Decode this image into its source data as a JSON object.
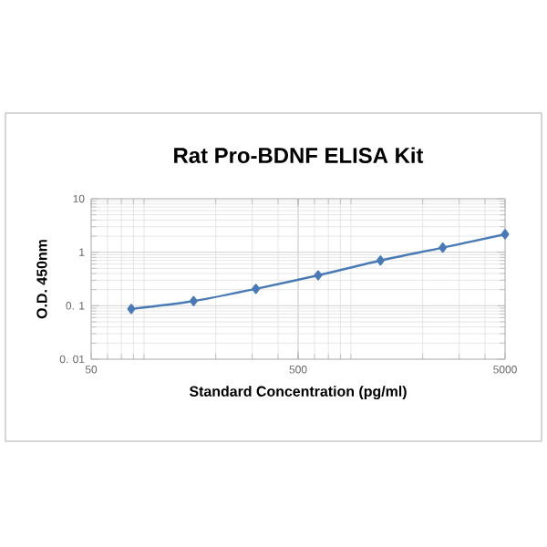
{
  "chart_data": {
    "type": "line",
    "title": "Rat Pro-BDNF ELISA Kit",
    "xlabel": "Standard Concentration (pg/ml)",
    "ylabel": "O.D. 450nm",
    "x": [
      78.125,
      156.25,
      312.5,
      625,
      1250,
      2500,
      5000
    ],
    "series": [
      {
        "color": "#4a7ab5",
        "values": [
          0.087,
          0.122,
          0.207,
          0.37,
          0.7,
          1.22,
          2.17
        ]
      }
    ],
    "log": "xy",
    "xlim": [
      50,
      5000
    ],
    "xticks": [
      50,
      500,
      5000
    ],
    "ylim": [
      0.01,
      10
    ],
    "yticks": [
      {
        "value": 0.01,
        "label": "0. 01"
      },
      {
        "value": 0.1,
        "label": "0. 1"
      },
      1,
      10
    ],
    "grid": true,
    "marker": "diamond",
    "line_style": "solid"
  }
}
